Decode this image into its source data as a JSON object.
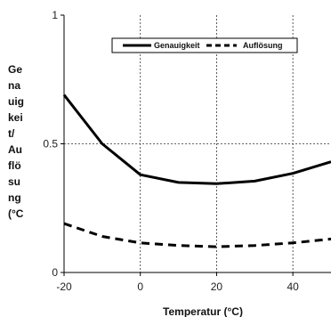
{
  "chart_data": {
    "type": "line",
    "title": "",
    "xlabel": "Temperatur (°C)",
    "ylabel_lines": [
      "Ge",
      "na",
      "uig",
      "kei",
      "t/",
      "Au",
      "flö",
      "su",
      "ng",
      "(°C"
    ],
    "x": [
      -20,
      -10,
      0,
      10,
      20,
      30,
      40,
      50
    ],
    "xlim": [
      -20,
      50
    ],
    "ylim": [
      0,
      1
    ],
    "xticks": [
      "-20",
      "0",
      "20",
      "40"
    ],
    "xtick_values": [
      -20,
      0,
      20,
      40
    ],
    "yticks": [
      "0",
      "0.5",
      "1"
    ],
    "ytick_values": [
      0,
      0.5,
      1
    ],
    "grid": {
      "vertical": true,
      "horizontal_at": [
        0.5
      ]
    },
    "legend_position": "top-right",
    "series": [
      {
        "name": "Genauigkeit",
        "style": "solid",
        "color": "#000000",
        "values": [
          0.69,
          0.5,
          0.38,
          0.35,
          0.345,
          0.355,
          0.385,
          0.43
        ]
      },
      {
        "name": "Auflösung",
        "style": "dashed",
        "color": "#000000",
        "values": [
          0.19,
          0.14,
          0.115,
          0.105,
          0.1,
          0.105,
          0.115,
          0.13
        ]
      }
    ]
  }
}
